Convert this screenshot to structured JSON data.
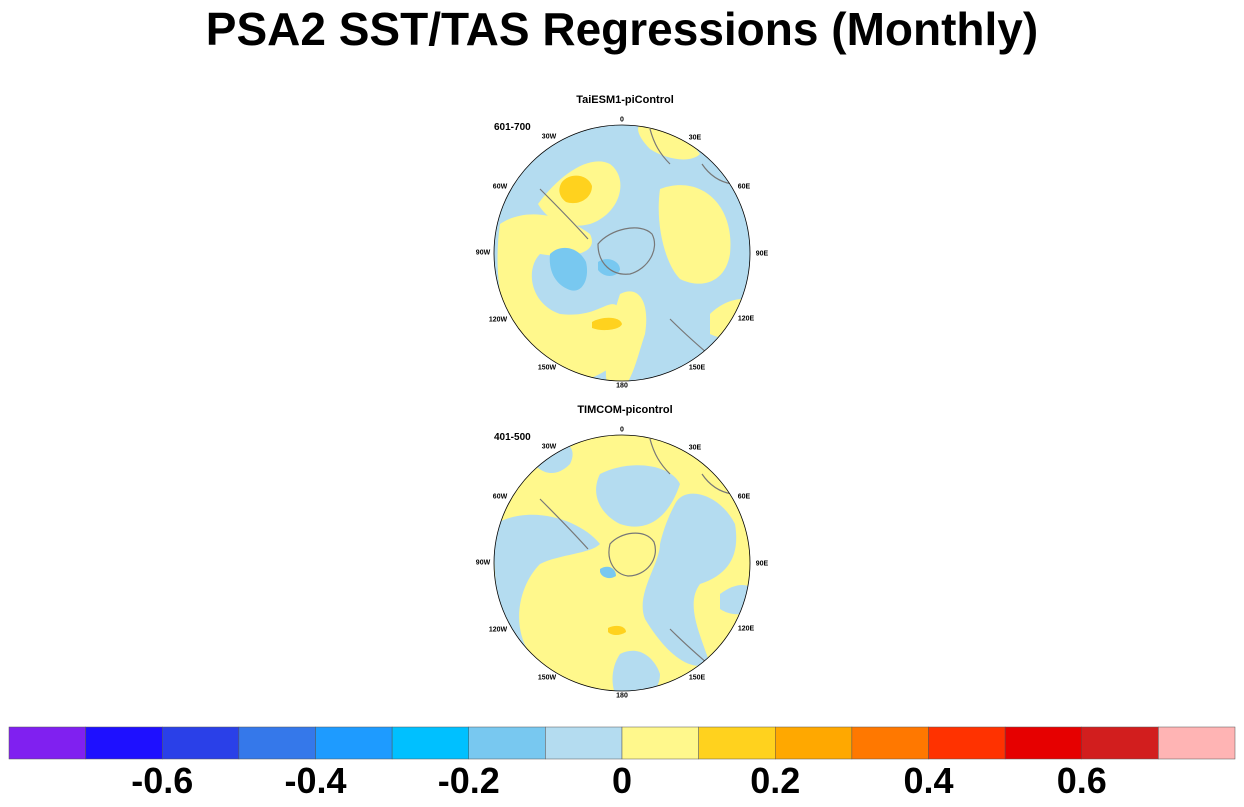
{
  "title": "PSA2 SST/TAS Regressions (Monthly)",
  "panels": [
    {
      "title": "TaiESM1-piControl",
      "period": "601-700"
    },
    {
      "title": "TIMCOM-picontrol",
      "period": "401-500"
    }
  ],
  "longitude_labels": [
    "0",
    "30E",
    "60E",
    "90E",
    "120E",
    "150E",
    "180",
    "150W",
    "120W",
    "90W",
    "60W",
    "30W"
  ],
  "colorbar": {
    "colors": [
      "#8020f0",
      "#1e10ff",
      "#2a40e8",
      "#3578ea",
      "#1e9bff",
      "#00c0ff",
      "#78c8f0",
      "#b4dcf0",
      "#fff88c",
      "#ffd21e",
      "#ffa800",
      "#ff7800",
      "#ff3200",
      "#e60000",
      "#d21e1e",
      "#ffb4b4"
    ],
    "tick_labels": [
      "-0.6",
      "-0.4",
      "-0.2",
      "0",
      "0.2",
      "0.4",
      "0.6"
    ]
  },
  "colors": {
    "ocean_neutral_neg": "#b4dcf0",
    "ocean_neutral_pos": "#fff88c",
    "pos_02": "#ffd21e",
    "neg_02": "#78c8f0",
    "coast": "#777777"
  }
}
